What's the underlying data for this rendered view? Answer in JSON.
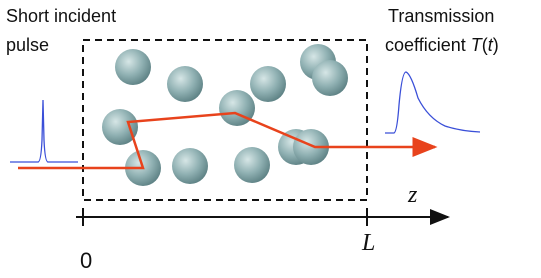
{
  "left_label": [
    "Short incident",
    "pulse"
  ],
  "right_label": {
    "line1": "Transmission",
    "line2": [
      "coefficient ",
      "T",
      "(",
      "t",
      ")"
    ]
  },
  "axis": {
    "variable": "z",
    "start": "0",
    "end": "L"
  }
}
